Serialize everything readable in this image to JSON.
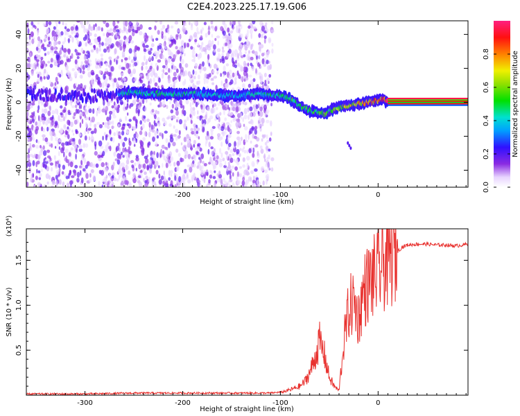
{
  "chart_data": [
    {
      "type": "heatmap",
      "title": "C2E4.2023.225.17.19.G06",
      "xlabel": "Height of straight line (km)",
      "ylabel": "Frequency (Hz)",
      "xlim": [
        -360,
        92
      ],
      "ylim": [
        -50,
        48
      ],
      "xticks": [
        -300,
        -200,
        -100,
        0
      ],
      "yticks": [
        -40,
        -20,
        0,
        20,
        40
      ],
      "colorbar": {
        "label": "Normalized spectral amplitude",
        "range": [
          0,
          1
        ],
        "ticks": [
          0.0,
          0.2,
          0.4,
          0.6,
          0.8
        ],
        "colormap": "rainbow (violet to red)"
      },
      "ridge": {
        "description": "dominant frequency of strongest spectral amplitude vs height",
        "x": [
          -265,
          -250,
          -230,
          -200,
          -180,
          -160,
          -140,
          -120,
          -100,
          -90,
          -80,
          -70,
          -60,
          -55,
          -50,
          -45,
          -40,
          -30,
          -20,
          -10,
          0,
          5,
          10,
          30,
          60,
          92
        ],
        "y": [
          5,
          6,
          5,
          5,
          5,
          4,
          4,
          5,
          4,
          2,
          -2,
          -5,
          -6,
          -7,
          -5,
          -4,
          -3,
          -2,
          -1,
          0,
          1,
          2,
          0,
          0,
          0,
          0
        ],
        "amplitude": [
          0.4,
          0.45,
          0.45,
          0.45,
          0.4,
          0.4,
          0.4,
          0.45,
          0.5,
          0.55,
          0.55,
          0.55,
          0.55,
          0.6,
          0.55,
          0.6,
          0.6,
          0.7,
          0.75,
          0.8,
          0.85,
          0.9,
          0.95,
          0.95,
          0.95,
          0.95
        ]
      },
      "noise_region_x": [
        -360,
        -100
      ]
    },
    {
      "type": "line",
      "title": "",
      "xlabel": "Height of straight line (km)",
      "ylabel": "SNR (10 * v/v)",
      "y_multiplier": "(x10⁴)",
      "xlim": [
        -360,
        92
      ],
      "ylim": [
        0,
        1.85
      ],
      "xticks": [
        -300,
        -200,
        -100,
        0
      ],
      "yticks": [
        0.5,
        1.0,
        1.5
      ],
      "series": [
        {
          "color": "#e8312e",
          "x": [
            -360,
            -300,
            -250,
            -200,
            -150,
            -110,
            -100,
            -90,
            -80,
            -75,
            -70,
            -65,
            -60,
            -55,
            -50,
            -45,
            -40,
            -35,
            -30,
            -25,
            -20,
            -15,
            -10,
            -5,
            0,
            5,
            10,
            15,
            20,
            25,
            30,
            40,
            50,
            60,
            70,
            80,
            92
          ],
          "y": [
            0.01,
            0.01,
            0.02,
            0.02,
            0.02,
            0.02,
            0.03,
            0.06,
            0.1,
            0.15,
            0.25,
            0.4,
            0.6,
            0.45,
            0.2,
            0.1,
            0.05,
            0.6,
            0.95,
            1.05,
            0.85,
            1.15,
            1.25,
            1.3,
            1.35,
            1.45,
            1.5,
            1.55,
            1.6,
            1.65,
            1.67,
            1.68,
            1.68,
            1.67,
            1.67,
            1.66,
            1.68
          ]
        }
      ]
    }
  ]
}
